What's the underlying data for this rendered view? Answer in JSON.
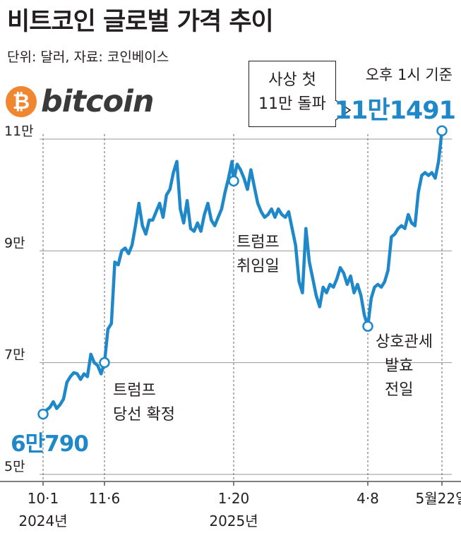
{
  "title": "비트코인 글로벌 가격 추이",
  "subtitle": "단위: 달러, 자료: 코인베이스",
  "logo": {
    "icon": "bitcoin-logo-icon",
    "symbol": "₿",
    "wordmark": "bitcoin",
    "symbol_color": "#f0862f"
  },
  "callout": {
    "lines": [
      "사상 첫",
      "11만 돌파"
    ]
  },
  "latest": {
    "basis": "오후 1시 기준",
    "value_label": "11만1491"
  },
  "colors": {
    "line": "#1e88c8",
    "text": "#231f20",
    "grid": "#9a9a9a"
  },
  "chart_data": {
    "type": "line",
    "y_unit": "달러",
    "ylim": [
      50000,
      110000
    ],
    "y_ticks": [
      {
        "value": 110000,
        "label": "11만"
      },
      {
        "value": 90000,
        "label": "9만"
      },
      {
        "value": 70000,
        "label": "7만"
      },
      {
        "value": 50000,
        "label": "5만"
      }
    ],
    "x_ticks": [
      {
        "date": "2024-10-01",
        "label": "10·1",
        "year_label": "2024년"
      },
      {
        "date": "2024-11-06",
        "label": "11·6",
        "year_label": ""
      },
      {
        "date": "2025-01-20",
        "label": "1·20",
        "year_label": "2025년"
      },
      {
        "date": "2025-04-08",
        "label": "4·8",
        "year_label": ""
      },
      {
        "date": "2025-05-22",
        "label": "5월22일",
        "year_label": ""
      }
    ],
    "points": [
      [
        "2024-10-01",
        60790
      ],
      [
        "2024-10-03",
        61500
      ],
      [
        "2024-10-05",
        62000
      ],
      [
        "2024-10-07",
        63000
      ],
      [
        "2024-10-09",
        61800
      ],
      [
        "2024-10-11",
        62500
      ],
      [
        "2024-10-13",
        63500
      ],
      [
        "2024-10-15",
        66500
      ],
      [
        "2024-10-17",
        67500
      ],
      [
        "2024-10-19",
        68200
      ],
      [
        "2024-10-21",
        68000
      ],
      [
        "2024-10-23",
        67000
      ],
      [
        "2024-10-25",
        68000
      ],
      [
        "2024-10-27",
        67500
      ],
      [
        "2024-10-29",
        71500
      ],
      [
        "2024-10-31",
        70000
      ],
      [
        "2024-11-02",
        69500
      ],
      [
        "2024-11-04",
        68000
      ],
      [
        "2024-11-06",
        70000
      ],
      [
        "2024-11-08",
        76000
      ],
      [
        "2024-11-10",
        77000
      ],
      [
        "2024-11-12",
        88000
      ],
      [
        "2024-11-14",
        87500
      ],
      [
        "2024-11-16",
        90000
      ],
      [
        "2024-11-18",
        90500
      ],
      [
        "2024-11-20",
        89500
      ],
      [
        "2024-11-22",
        91000
      ],
      [
        "2024-11-24",
        94500
      ],
      [
        "2024-11-26",
        98500
      ],
      [
        "2024-11-28",
        94500
      ],
      [
        "2024-11-30",
        93000
      ],
      [
        "2024-12-02",
        95500
      ],
      [
        "2024-12-04",
        95500
      ],
      [
        "2024-12-06",
        97000
      ],
      [
        "2024-12-08",
        98500
      ],
      [
        "2024-12-10",
        96000
      ],
      [
        "2024-12-12",
        100000
      ],
      [
        "2024-12-14",
        101000
      ],
      [
        "2024-12-16",
        104000
      ],
      [
        "2024-12-18",
        106000
      ],
      [
        "2024-12-20",
        97500
      ],
      [
        "2024-12-22",
        95000
      ],
      [
        "2024-12-24",
        99000
      ],
      [
        "2024-12-26",
        94000
      ],
      [
        "2024-12-28",
        93500
      ],
      [
        "2024-12-30",
        95000
      ],
      [
        "2025-01-01",
        93500
      ],
      [
        "2025-01-03",
        96500
      ],
      [
        "2025-01-05",
        98500
      ],
      [
        "2025-01-07",
        95500
      ],
      [
        "2025-01-09",
        94500
      ],
      [
        "2025-01-11",
        96000
      ],
      [
        "2025-01-13",
        97500
      ],
      [
        "2025-01-15",
        100500
      ],
      [
        "2025-01-17",
        103000
      ],
      [
        "2025-01-19",
        106000
      ],
      [
        "2025-01-20",
        102500
      ],
      [
        "2025-01-22",
        105500
      ],
      [
        "2025-01-24",
        104500
      ],
      [
        "2025-01-26",
        103000
      ],
      [
        "2025-01-28",
        101000
      ],
      [
        "2025-01-30",
        104500
      ],
      [
        "2025-02-01",
        101500
      ],
      [
        "2025-02-03",
        98500
      ],
      [
        "2025-02-05",
        97000
      ],
      [
        "2025-02-07",
        96000
      ],
      [
        "2025-02-09",
        96500
      ],
      [
        "2025-02-11",
        97500
      ],
      [
        "2025-02-13",
        96000
      ],
      [
        "2025-02-15",
        97500
      ],
      [
        "2025-02-17",
        96500
      ],
      [
        "2025-02-19",
        96000
      ],
      [
        "2025-02-21",
        97000
      ],
      [
        "2025-02-23",
        94000
      ],
      [
        "2025-02-25",
        91000
      ],
      [
        "2025-02-27",
        84500
      ],
      [
        "2025-03-01",
        82500
      ],
      [
        "2025-03-03",
        94000
      ],
      [
        "2025-03-05",
        88000
      ],
      [
        "2025-03-07",
        85000
      ],
      [
        "2025-03-09",
        82000
      ],
      [
        "2025-03-11",
        80000
      ],
      [
        "2025-03-13",
        83500
      ],
      [
        "2025-03-15",
        82500
      ],
      [
        "2025-03-17",
        84000
      ],
      [
        "2025-03-19",
        83500
      ],
      [
        "2025-03-21",
        85000
      ],
      [
        "2025-03-23",
        87000
      ],
      [
        "2025-03-25",
        86000
      ],
      [
        "2025-03-27",
        84000
      ],
      [
        "2025-03-29",
        85500
      ],
      [
        "2025-03-31",
        82500
      ],
      [
        "2025-04-02",
        84000
      ],
      [
        "2025-04-04",
        82000
      ],
      [
        "2025-04-06",
        78500
      ],
      [
        "2025-04-08",
        76500
      ],
      [
        "2025-04-10",
        81500
      ],
      [
        "2025-04-12",
        83500
      ],
      [
        "2025-04-14",
        84000
      ],
      [
        "2025-04-16",
        83500
      ],
      [
        "2025-04-18",
        84500
      ],
      [
        "2025-04-20",
        86500
      ],
      [
        "2025-04-22",
        92500
      ],
      [
        "2025-04-24",
        93000
      ],
      [
        "2025-04-26",
        94000
      ],
      [
        "2025-04-28",
        94500
      ],
      [
        "2025-04-30",
        94000
      ],
      [
        "2025-05-02",
        96500
      ],
      [
        "2025-05-04",
        95000
      ],
      [
        "2025-05-06",
        94500
      ],
      [
        "2025-05-08",
        100500
      ],
      [
        "2025-05-10",
        103500
      ],
      [
        "2025-05-12",
        104000
      ],
      [
        "2025-05-14",
        103500
      ],
      [
        "2025-05-16",
        104000
      ],
      [
        "2025-05-18",
        103000
      ],
      [
        "2025-05-20",
        106000
      ],
      [
        "2025-05-22",
        111491
      ]
    ],
    "annotations": [
      {
        "date": "2024-10-01",
        "value": 60790,
        "label": "6만790",
        "style": "value"
      },
      {
        "date": "2024-11-06",
        "value": 70000,
        "label": "트럼프\n당선 확정",
        "style": "event"
      },
      {
        "date": "2025-01-20",
        "value": 102500,
        "label": "트럼프\n취임일",
        "style": "event"
      },
      {
        "date": "2025-04-08",
        "value": 76500,
        "label": "상호관세\n발효\n전일",
        "style": "event"
      },
      {
        "date": "2025-05-22",
        "value": 111491,
        "label": "",
        "style": "latest"
      }
    ]
  }
}
